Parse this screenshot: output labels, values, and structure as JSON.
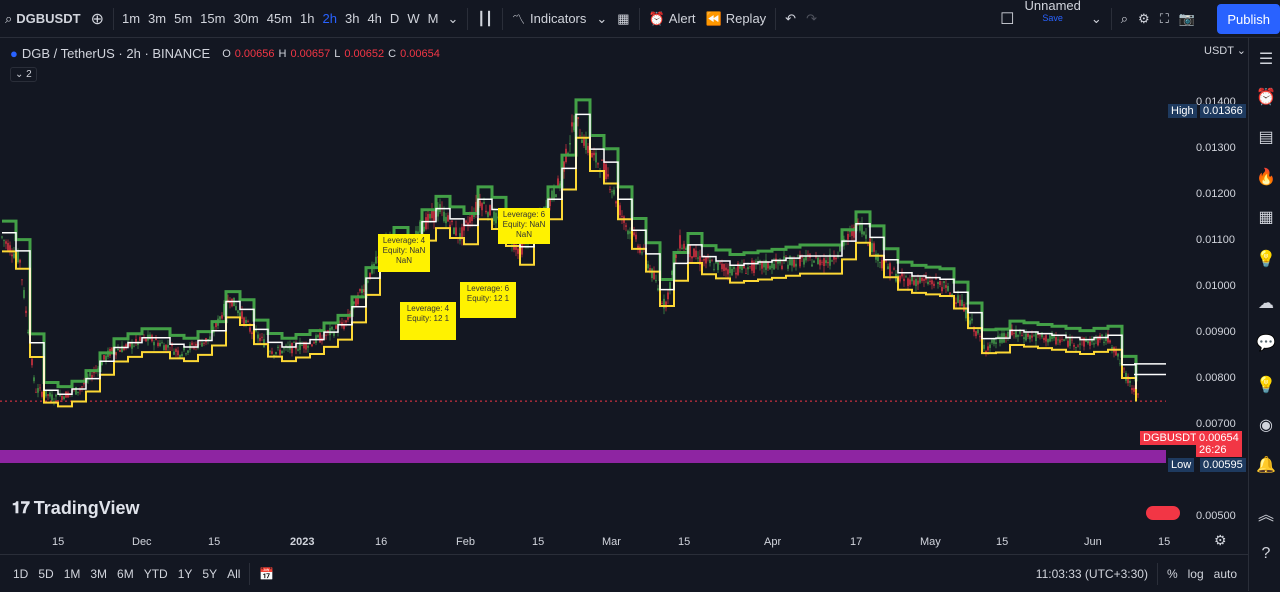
{
  "toolbar": {
    "symbol": "DGBUSDT",
    "intervals": [
      "1m",
      "3m",
      "5m",
      "15m",
      "30m",
      "45m",
      "1h",
      "2h",
      "3h",
      "4h",
      "D",
      "W",
      "M"
    ],
    "active_interval": "2h",
    "indicators_label": "Indicators",
    "alert_label": "Alert",
    "replay_label": "Replay",
    "layout_name": "Unnamed",
    "layout_sub": "Save",
    "publish_label": "Publish"
  },
  "legend": {
    "title": "DGB / TetherUS · 2h · BINANCE",
    "open_label": "O",
    "open": "0.00656",
    "high_label": "H",
    "high": "0.00657",
    "low_label": "L",
    "low": "0.00652",
    "close_label": "C",
    "close": "0.00654",
    "collapse": "2"
  },
  "price_axis": {
    "currency": "USDT",
    "ticks": [
      "0.01400",
      "0.01300",
      "0.01200",
      "0.01100",
      "0.01000",
      "0.00900",
      "0.00800",
      "0.00700",
      "0.00500"
    ],
    "high_label": "High",
    "high_value": "0.01366",
    "low_label": "Low",
    "low_value": "0.00595",
    "symbol_tag": "DGBUSDT",
    "last_price": "0.00654",
    "countdown": "26:26"
  },
  "time_axis": {
    "labels": [
      "15",
      "Dec",
      "15",
      "2023",
      "16",
      "Feb",
      "15",
      "Mar",
      "15",
      "Apr",
      "17",
      "May",
      "15",
      "Jun",
      "15"
    ]
  },
  "notes": [
    {
      "text": "Leverage: 4 Equity: NaN NaN"
    },
    {
      "text": "Leverage: 4 Equity: 12 1"
    },
    {
      "text": "Leverage: 6 Equity: 12 1"
    },
    {
      "text": "Leverage: 6 Equity: NaN NaN"
    }
  ],
  "bottom": {
    "ranges": [
      "1D",
      "5D",
      "1M",
      "3M",
      "6M",
      "YTD",
      "1Y",
      "5Y",
      "All"
    ],
    "clock": "11:03:33 (UTC+3:30)",
    "pct": "%",
    "log": "log",
    "auto": "auto"
  },
  "brand": "TradingView",
  "colors": {
    "up": "#4caf50",
    "down": "#f23645",
    "accent": "#2962ff",
    "zone": "#9c27b0"
  }
}
